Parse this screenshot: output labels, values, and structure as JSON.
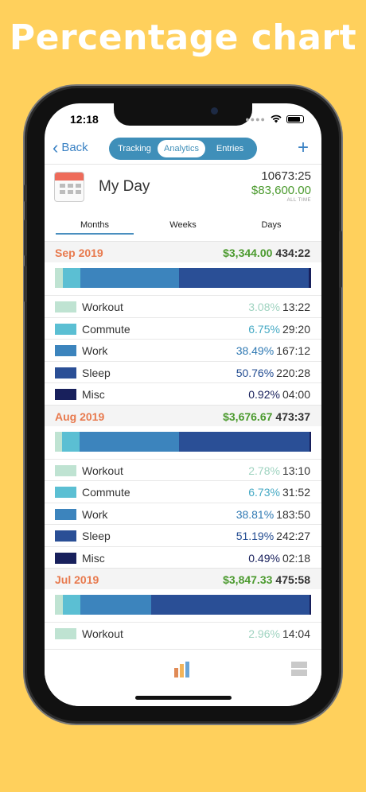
{
  "headline": "Percentage chart",
  "status": {
    "time": "12:18",
    "dots": "●●●●"
  },
  "nav": {
    "back_label": "Back",
    "tabs": [
      "Tracking",
      "Analytics",
      "Entries"
    ],
    "active_tab": "Analytics",
    "add_label": "+"
  },
  "summary": {
    "title": "My Day",
    "total_hours": "10673:25",
    "total_money": "$83,600.00",
    "caption": "ALL TIME"
  },
  "period_tabs": [
    "Months",
    "Weeks",
    "Days"
  ],
  "active_period": "Months",
  "colors": {
    "Workout": "#bfe3d2",
    "Commute": "#5bbfd3",
    "Work": "#3c84bd",
    "Sleep": "#2a4f96",
    "Misc": "#18205c",
    "accent": "#3f8fb9",
    "month": "#e87a4e",
    "money": "#4b9a2e"
  },
  "months": [
    {
      "name": "Sep 2019",
      "money": "$3,344.00",
      "hours": "434:22",
      "categories": [
        {
          "name": "Workout",
          "percent": "3.08%",
          "hours": "13:22"
        },
        {
          "name": "Commute",
          "percent": "6.75%",
          "hours": "29:20"
        },
        {
          "name": "Work",
          "percent": "38.49%",
          "hours": "167:12"
        },
        {
          "name": "Sleep",
          "percent": "50.76%",
          "hours": "220:28"
        },
        {
          "name": "Misc",
          "percent": "0.92%",
          "hours": "04:00"
        }
      ]
    },
    {
      "name": "Aug 2019",
      "money": "$3,676.67",
      "hours": "473:37",
      "categories": [
        {
          "name": "Workout",
          "percent": "2.78%",
          "hours": "13:10"
        },
        {
          "name": "Commute",
          "percent": "6.73%",
          "hours": "31:52"
        },
        {
          "name": "Work",
          "percent": "38.81%",
          "hours": "183:50"
        },
        {
          "name": "Sleep",
          "percent": "51.19%",
          "hours": "242:27"
        },
        {
          "name": "Misc",
          "percent": "0.49%",
          "hours": "02:18"
        }
      ]
    },
    {
      "name": "Jul 2019",
      "money": "$3,847.33",
      "hours": "475:58",
      "categories": [
        {
          "name": "Workout",
          "percent": "2.96%",
          "hours": "14:04"
        }
      ],
      "bar_percents": [
        2.96,
        7.1,
        27.5,
        61.9,
        0.54
      ]
    }
  ]
}
